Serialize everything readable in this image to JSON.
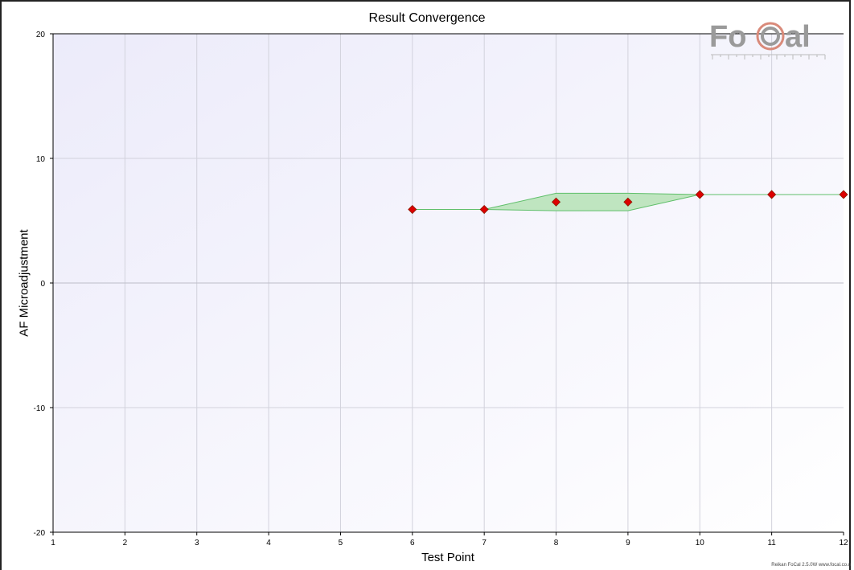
{
  "window": {
    "credit": "Reikan FoCal 2.5.0W www.focal.co.u"
  },
  "logo": {
    "text_left": "Fo",
    "text_right": "al",
    "color": "#9a9a9a",
    "accent": "#d98a7a"
  },
  "chart_data": {
    "type": "line",
    "title": "Result Convergence",
    "xlabel": "Test Point",
    "ylabel": "AF Microadjustment",
    "xlim": [
      1,
      12
    ],
    "ylim": [
      -20,
      20
    ],
    "xticks": [
      1,
      2,
      3,
      4,
      5,
      6,
      7,
      8,
      9,
      10,
      11,
      12
    ],
    "yticks": [
      -20,
      -10,
      0,
      10,
      20
    ],
    "grid": true,
    "series": [
      {
        "x": [
          6,
          7,
          8,
          9,
          10,
          11,
          12
        ],
        "values": [
          5.9,
          5.9,
          6.5,
          6.5,
          7.1,
          7.1,
          7.1
        ],
        "color": "#dd0000"
      }
    ],
    "band": {
      "x": [
        6,
        7,
        8,
        9,
        10,
        11,
        12
      ],
      "upper": [
        5.9,
        5.9,
        7.2,
        7.2,
        7.1,
        7.1,
        7.1
      ],
      "lower": [
        5.9,
        5.9,
        5.8,
        5.8,
        7.1,
        7.1,
        7.1
      ],
      "fill": "#b9e3b9",
      "stroke": "#5fbf6a"
    }
  }
}
